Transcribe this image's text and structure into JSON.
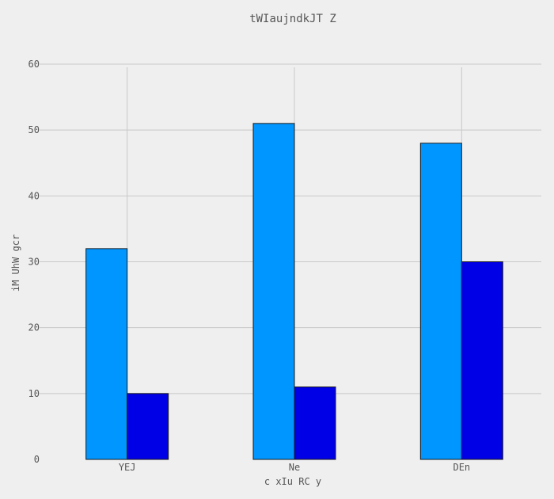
{
  "chart_data": {
    "type": "bar",
    "title": "tWIaujndkJT Z",
    "xlabel": "c xIu RC y",
    "ylabel": "iM UhW gcr",
    "categories": [
      "YEJ",
      "Ne",
      "DEn"
    ],
    "series": [
      {
        "values": [
          32,
          51,
          48
        ],
        "color": "#0096ff"
      },
      {
        "values": [
          10,
          11,
          30
        ],
        "color": "#0000e6"
      }
    ],
    "ylim": [
      0,
      60
    ],
    "yticks": [
      0,
      10,
      20,
      30,
      40,
      50,
      60
    ],
    "grid": true,
    "legend": "none"
  }
}
